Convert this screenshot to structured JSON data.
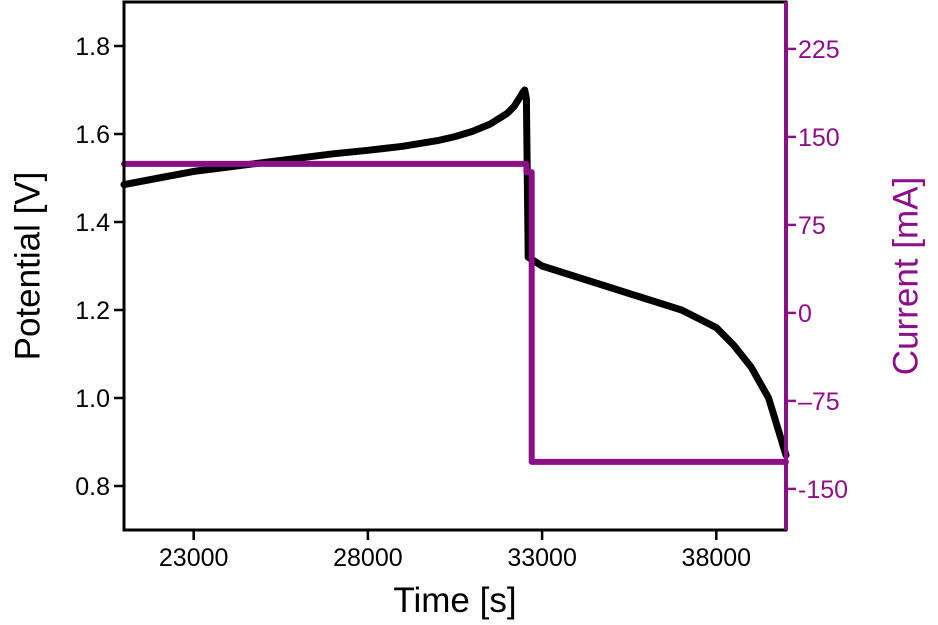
{
  "chart_data": {
    "type": "line",
    "xlabel": "Time [s]",
    "ylabel": "Potential [V]",
    "y2label": "Current [mA]",
    "xlim": [
      21000,
      40000
    ],
    "ylim": [
      0.7,
      1.9
    ],
    "y2lim": [
      -185,
      265
    ],
    "x_ticks": [
      23000,
      28000,
      33000,
      38000
    ],
    "x_tick_labels": [
      "23000",
      "28000",
      "33000",
      "38000"
    ],
    "y_ticks": [
      0.8,
      1.0,
      1.2,
      1.4,
      1.6,
      1.8
    ],
    "y_tick_labels": [
      "0.8",
      "1.0",
      "1.2",
      "1.4",
      "1.6",
      "1.8"
    ],
    "y2_ticks": [
      -150,
      -75,
      0,
      75,
      150,
      225
    ],
    "y2_tick_labels": [
      "-150",
      "–75",
      "0",
      "75",
      "150",
      "225"
    ],
    "grid": false,
    "colors": {
      "potential": "#000000",
      "current": "#8b0f87"
    },
    "series": [
      {
        "axis": "left",
        "x": [
          21000,
          22000,
          23000,
          24000,
          25000,
          26000,
          27000,
          28000,
          29000,
          30000,
          30500,
          31000,
          31500,
          32000,
          32200,
          32400,
          32450,
          32500,
          32550,
          32600,
          33000,
          34000,
          35000,
          36000,
          37000,
          37500,
          38000,
          38500,
          39000,
          39500,
          40000
        ],
        "y": [
          1.485,
          1.5,
          1.515,
          1.525,
          1.535,
          1.545,
          1.555,
          1.563,
          1.572,
          1.585,
          1.594,
          1.606,
          1.622,
          1.647,
          1.663,
          1.688,
          1.695,
          1.7,
          1.68,
          1.32,
          1.3,
          1.275,
          1.25,
          1.225,
          1.2,
          1.18,
          1.16,
          1.12,
          1.07,
          1.0,
          0.87
        ]
      },
      {
        "axis": "right",
        "x": [
          21000,
          32550,
          32550,
          32700,
          32700,
          40000
        ],
        "y": [
          127,
          127,
          120,
          120,
          -127,
          -127
        ]
      }
    ]
  }
}
